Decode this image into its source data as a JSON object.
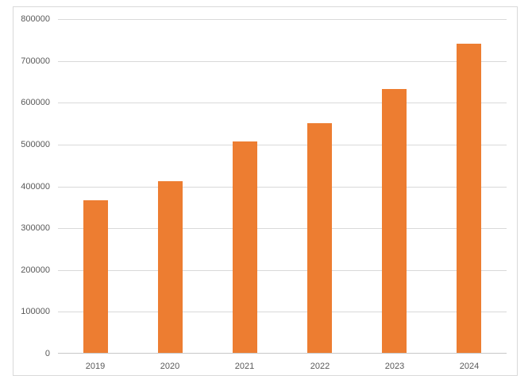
{
  "chart_data": {
    "type": "bar",
    "title": "",
    "xlabel": "",
    "ylabel": "",
    "categories": [
      "2019",
      "2020",
      "2021",
      "2022",
      "2023",
      "2024"
    ],
    "values": [
      365000,
      410000,
      505000,
      550000,
      630000,
      740000
    ],
    "ylim": [
      0,
      800000
    ],
    "ytick_step": 100000,
    "ytick_labels": [
      "0",
      "100000",
      "200000",
      "300000",
      "400000",
      "500000",
      "600000",
      "700000",
      "800000"
    ],
    "grid": "horizontal",
    "legend_position": "none",
    "colors": {
      "bar": "#ED7D31",
      "gridline": "#D9D9D9",
      "axis_line": "#C8C8C8",
      "tick_label": "#595959",
      "chart_border": "#D9D9D9",
      "background": "#FFFFFF"
    }
  }
}
